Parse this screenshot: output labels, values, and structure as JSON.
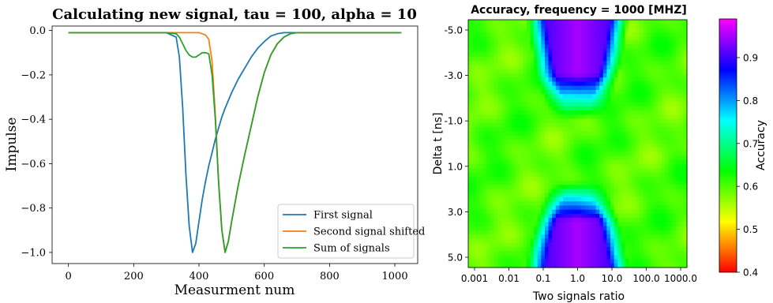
{
  "chart_data": [
    {
      "type": "line",
      "title": "Calculating new signal, tau = 100, alpha = 10",
      "xlabel": "Measurment num",
      "ylabel": "Impulse",
      "xlim": [
        -50,
        1070
      ],
      "ylim": [
        -1.05,
        0.02
      ],
      "xticks": [
        0,
        200,
        400,
        600,
        800,
        1000
      ],
      "xtick_labels": [
        "0",
        "200",
        "400",
        "600",
        "800",
        "1000"
      ],
      "yticks": [
        0.0,
        -0.2,
        -0.4,
        -0.6,
        -0.8,
        -1.0
      ],
      "ytick_labels": [
        "0.0",
        "−0.2",
        "−0.4",
        "−0.6",
        "−0.8",
        "−1.0"
      ],
      "grid": false,
      "legend_position": "lower-right",
      "series": [
        {
          "name": "First signal",
          "color": "#1f77b4",
          "x": [
            0,
            100,
            200,
            300,
            330,
            340,
            350,
            360,
            370,
            380,
            390,
            400,
            410,
            420,
            430,
            440,
            450,
            460,
            470,
            480,
            500,
            520,
            540,
            560,
            580,
            600,
            620,
            640,
            660,
            680,
            700,
            800,
            900,
            1000,
            1020
          ],
          "y": [
            -0.01,
            -0.01,
            -0.01,
            -0.01,
            -0.03,
            -0.12,
            -0.35,
            -0.65,
            -0.88,
            -1.0,
            -0.96,
            -0.86,
            -0.76,
            -0.68,
            -0.61,
            -0.55,
            -0.49,
            -0.44,
            -0.39,
            -0.35,
            -0.28,
            -0.22,
            -0.17,
            -0.12,
            -0.08,
            -0.05,
            -0.025,
            -0.015,
            -0.01,
            -0.01,
            -0.01,
            -0.01,
            -0.01,
            -0.01,
            -0.01
          ]
        },
        {
          "name": "Second signal shifted",
          "color": "#ff7f0e",
          "x": [
            0,
            100,
            200,
            300,
            400,
            420,
            430,
            440,
            450,
            460,
            470,
            480,
            490,
            500,
            520,
            540,
            560,
            580,
            600,
            620,
            640,
            660,
            680,
            700,
            800,
            900,
            1000,
            1020
          ],
          "y": [
            -0.01,
            -0.01,
            -0.01,
            -0.01,
            -0.01,
            -0.02,
            -0.04,
            -0.14,
            -0.38,
            -0.68,
            -0.9,
            -1.0,
            -0.95,
            -0.86,
            -0.7,
            -0.56,
            -0.43,
            -0.3,
            -0.19,
            -0.11,
            -0.06,
            -0.03,
            -0.015,
            -0.01,
            -0.01,
            -0.01,
            -0.01,
            -0.01
          ]
        },
        {
          "name": "Sum of signals",
          "color": "#2ca02c",
          "x": [
            0,
            100,
            200,
            300,
            330,
            340,
            350,
            360,
            370,
            380,
            390,
            400,
            410,
            420,
            430,
            440,
            450,
            460,
            470,
            480,
            490,
            500,
            520,
            540,
            560,
            580,
            600,
            620,
            640,
            660,
            680,
            700,
            800,
            900,
            1000,
            1020
          ],
          "y": [
            -0.01,
            -0.01,
            -0.01,
            -0.01,
            -0.015,
            -0.03,
            -0.06,
            -0.09,
            -0.11,
            -0.12,
            -0.12,
            -0.11,
            -0.1,
            -0.1,
            -0.105,
            -0.2,
            -0.4,
            -0.68,
            -0.9,
            -1.0,
            -0.95,
            -0.86,
            -0.7,
            -0.56,
            -0.43,
            -0.3,
            -0.19,
            -0.11,
            -0.06,
            -0.03,
            -0.015,
            -0.01,
            -0.01,
            -0.01,
            -0.01,
            -0.01
          ]
        }
      ]
    },
    {
      "type": "heatmap",
      "title": "Accuracy, frequency = 1000 [MHZ]",
      "xlabel": "Two signals ratio",
      "ylabel": "Delta t [ns]",
      "x_tick_labels": [
        "0.001",
        "0.01",
        "0.1",
        "1.0",
        "10.0",
        "100.0",
        "1000.0"
      ],
      "y_tick_labels": [
        "-5.0",
        "-3.0",
        "-1.0",
        "1.0",
        "3.0",
        "5.0"
      ],
      "x_range_log10": [
        -3,
        3
      ],
      "y_range": [
        -5.2,
        5.2
      ],
      "colorbar_label": "Accuracy",
      "colorbar_range": [
        0.4,
        0.99
      ],
      "colorbar_ticks": [
        "0.4",
        "0.5",
        "0.6",
        "0.7",
        "0.8",
        "0.9"
      ],
      "colormap": "gist_rainbow",
      "background_accuracy": 0.6,
      "peak_accuracy": 0.95,
      "high_regions": [
        {
          "delta_t_center": -5.2,
          "ratio_log10_center": 0,
          "ratio_log10_halfwidth": 1.0,
          "delta_t_extent": 4.2,
          "peak": 0.95
        },
        {
          "delta_t_center": 5.2,
          "ratio_log10_center": 0,
          "ratio_log10_halfwidth": 1.0,
          "delta_t_extent": 3.6,
          "peak": 0.95
        }
      ]
    }
  ]
}
